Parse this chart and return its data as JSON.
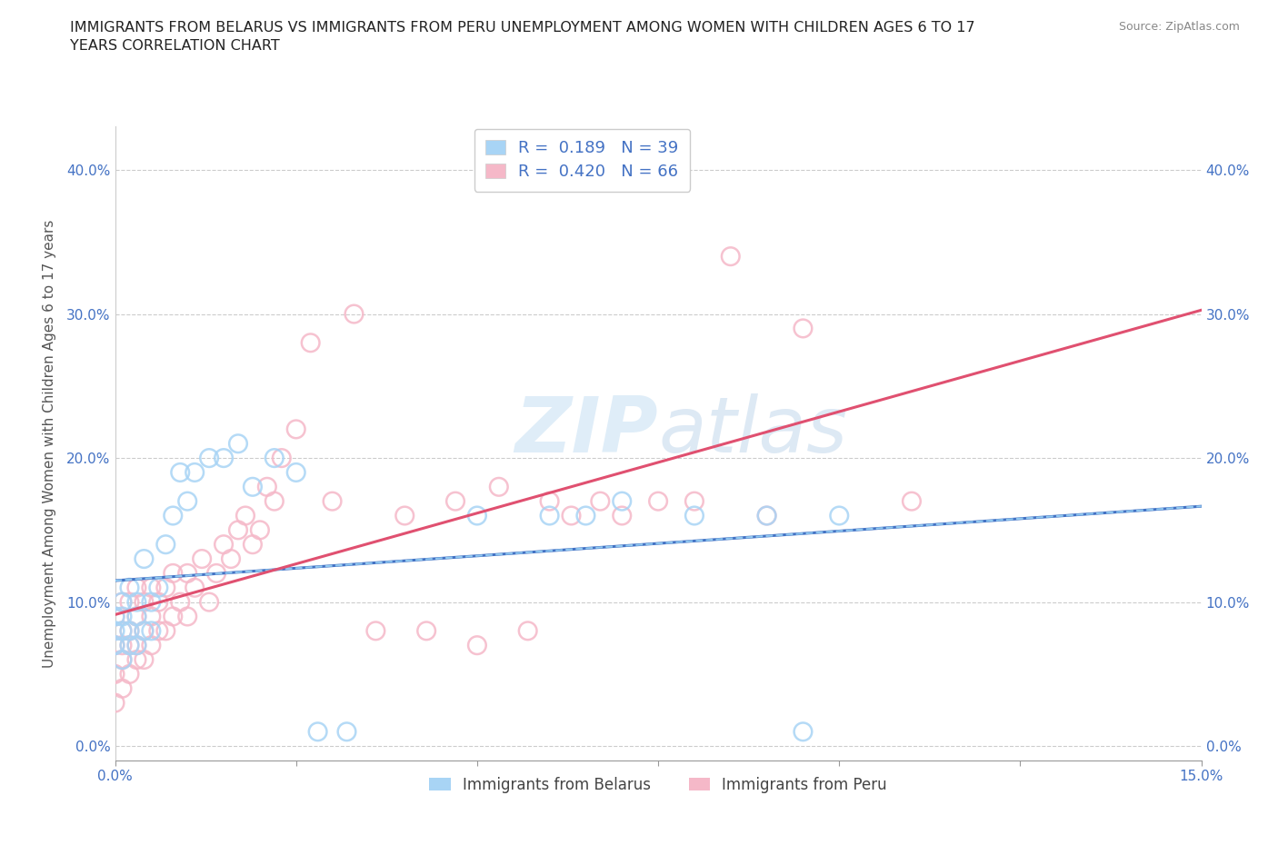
{
  "title": "IMMIGRANTS FROM BELARUS VS IMMIGRANTS FROM PERU UNEMPLOYMENT AMONG WOMEN WITH CHILDREN AGES 6 TO 17\nYEARS CORRELATION CHART",
  "source_text": "Source: ZipAtlas.com",
  "ylabel": "Unemployment Among Women with Children Ages 6 to 17 years",
  "legend_labels": [
    "Immigrants from Belarus",
    "Immigrants from Peru"
  ],
  "legend_R": [
    0.189,
    0.42
  ],
  "legend_N": [
    39,
    66
  ],
  "xlim": [
    0.0,
    0.15
  ],
  "ylim": [
    -0.01,
    0.43
  ],
  "yticks": [
    0.0,
    0.1,
    0.2,
    0.3,
    0.4
  ],
  "ytick_labels": [
    "0.0%",
    "10.0%",
    "20.0%",
    "30.0%",
    "40.0%"
  ],
  "xticks": [
    0.0,
    0.025,
    0.05,
    0.075,
    0.1,
    0.125,
    0.15
  ],
  "color_belarus": "#a8d4f5",
  "color_peru": "#f5b8c8",
  "line_color_belarus": "#4472c4",
  "line_color_peru": "#e05070",
  "line_color_belarus_dash": "#90c8f0",
  "watermark": "ZIPatlas",
  "belarus_x": [
    0.0,
    0.0,
    0.0,
    0.001,
    0.001,
    0.001,
    0.001,
    0.002,
    0.002,
    0.002,
    0.003,
    0.003,
    0.003,
    0.004,
    0.004,
    0.005,
    0.005,
    0.006,
    0.007,
    0.008,
    0.009,
    0.01,
    0.011,
    0.013,
    0.015,
    0.017,
    0.019,
    0.022,
    0.025,
    0.028,
    0.032,
    0.05,
    0.06,
    0.065,
    0.07,
    0.08,
    0.09,
    0.095,
    0.1
  ],
  "belarus_y": [
    0.07,
    0.08,
    0.09,
    0.06,
    0.08,
    0.09,
    0.1,
    0.07,
    0.08,
    0.11,
    0.07,
    0.09,
    0.1,
    0.08,
    0.13,
    0.08,
    0.1,
    0.11,
    0.14,
    0.16,
    0.19,
    0.17,
    0.19,
    0.2,
    0.2,
    0.21,
    0.18,
    0.2,
    0.19,
    0.01,
    0.01,
    0.16,
    0.16,
    0.16,
    0.17,
    0.16,
    0.16,
    0.01,
    0.16
  ],
  "peru_x": [
    0.0,
    0.0,
    0.0,
    0.0,
    0.001,
    0.001,
    0.001,
    0.001,
    0.001,
    0.002,
    0.002,
    0.002,
    0.002,
    0.003,
    0.003,
    0.003,
    0.003,
    0.004,
    0.004,
    0.004,
    0.005,
    0.005,
    0.005,
    0.006,
    0.006,
    0.007,
    0.007,
    0.008,
    0.008,
    0.009,
    0.01,
    0.01,
    0.011,
    0.012,
    0.013,
    0.014,
    0.015,
    0.016,
    0.017,
    0.018,
    0.019,
    0.02,
    0.021,
    0.022,
    0.023,
    0.025,
    0.027,
    0.03,
    0.033,
    0.036,
    0.04,
    0.043,
    0.047,
    0.05,
    0.053,
    0.057,
    0.06,
    0.063,
    0.067,
    0.07,
    0.075,
    0.08,
    0.085,
    0.09,
    0.095,
    0.11
  ],
  "peru_y": [
    0.03,
    0.05,
    0.07,
    0.09,
    0.04,
    0.06,
    0.07,
    0.08,
    0.1,
    0.05,
    0.07,
    0.08,
    0.1,
    0.06,
    0.07,
    0.09,
    0.11,
    0.06,
    0.08,
    0.1,
    0.07,
    0.09,
    0.11,
    0.08,
    0.1,
    0.08,
    0.11,
    0.09,
    0.12,
    0.1,
    0.09,
    0.12,
    0.11,
    0.13,
    0.1,
    0.12,
    0.14,
    0.13,
    0.15,
    0.16,
    0.14,
    0.15,
    0.18,
    0.17,
    0.2,
    0.22,
    0.28,
    0.17,
    0.3,
    0.08,
    0.16,
    0.08,
    0.17,
    0.07,
    0.18,
    0.08,
    0.17,
    0.16,
    0.17,
    0.16,
    0.17,
    0.17,
    0.34,
    0.16,
    0.29,
    0.17
  ]
}
